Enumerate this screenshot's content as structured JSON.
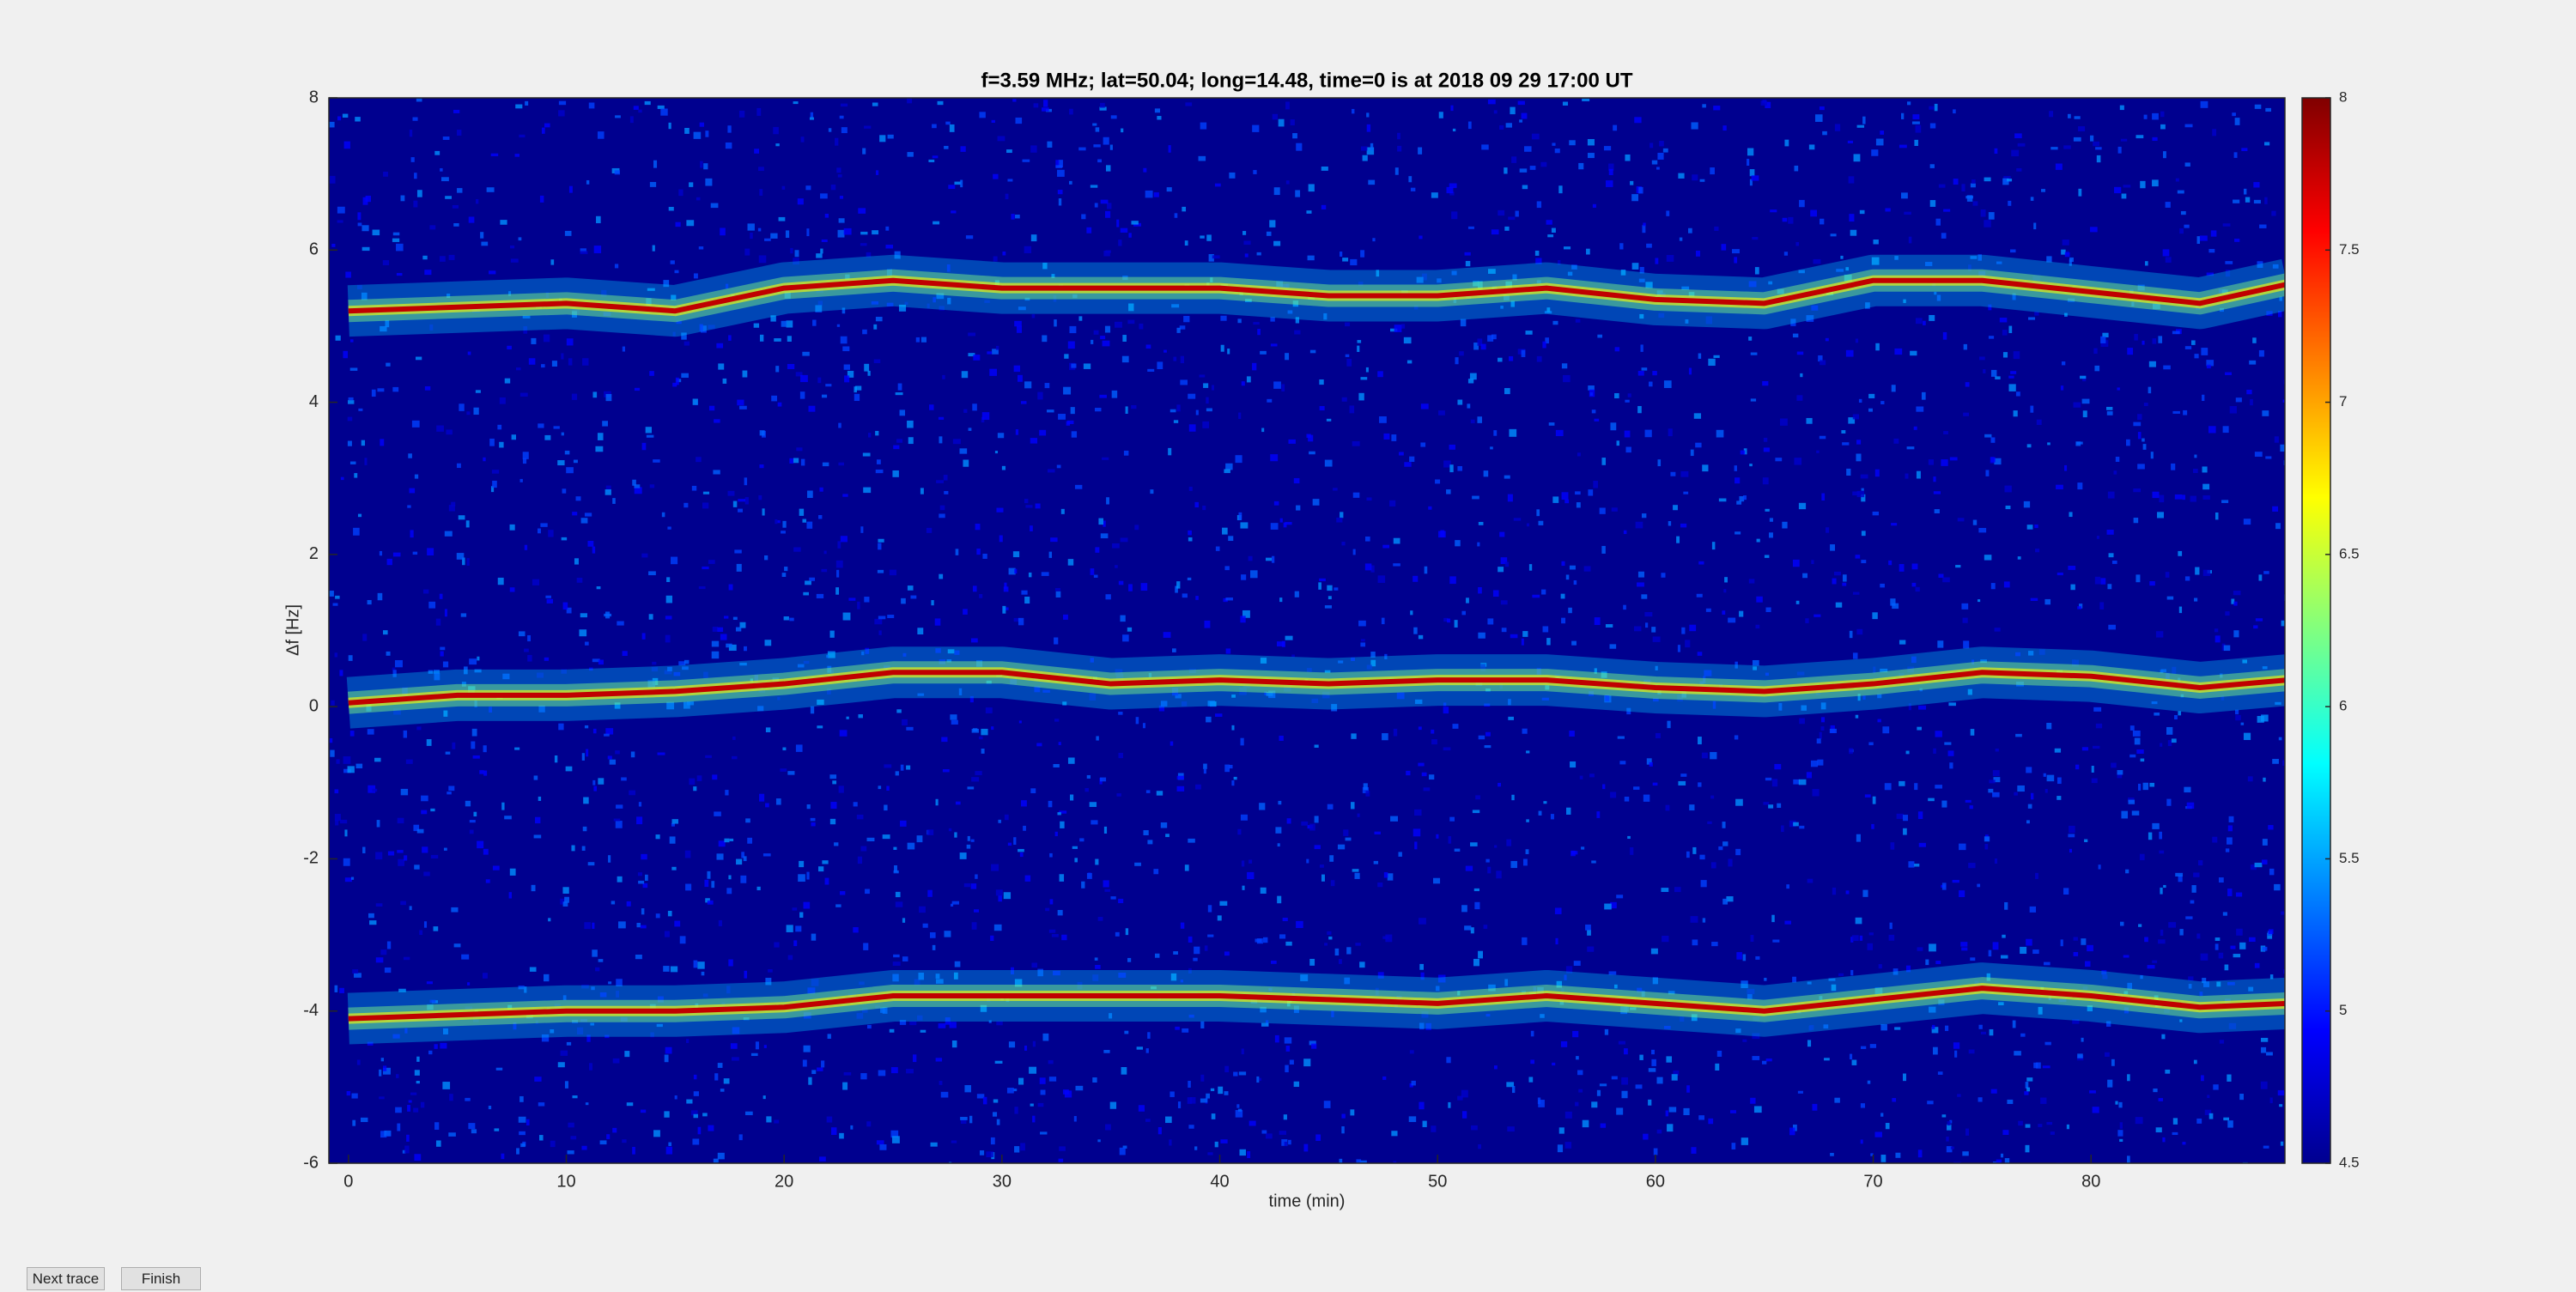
{
  "chart_data": {
    "type": "line",
    "title": "f=3.59 MHz;  lat=50.04; long=14.48, time=0 is at 2018 09 29 17:00 UT",
    "xlabel": "time (min)",
    "ylabel": "Δf [Hz]",
    "x": [
      0,
      5,
      10,
      15,
      20,
      25,
      30,
      35,
      40,
      45,
      50,
      55,
      60,
      65,
      70,
      75,
      80,
      85,
      89
    ],
    "series": [
      {
        "color": "#c00000",
        "values": [
          5.2,
          5.25,
          5.3,
          5.2,
          5.5,
          5.6,
          5.5,
          5.5,
          5.5,
          5.4,
          5.4,
          5.5,
          5.35,
          5.3,
          5.6,
          5.6,
          5.45,
          5.3,
          5.55
        ]
      },
      {
        "color": "#c00000",
        "values": [
          0.05,
          0.15,
          0.15,
          0.2,
          0.3,
          0.45,
          0.45,
          0.3,
          0.35,
          0.3,
          0.35,
          0.35,
          0.25,
          0.2,
          0.3,
          0.45,
          0.4,
          0.25,
          0.35
        ]
      },
      {
        "color": "#c00000",
        "values": [
          -4.1,
          -4.05,
          -4.0,
          -4.0,
          -3.95,
          -3.8,
          -3.8,
          -3.8,
          -3.8,
          -3.85,
          -3.9,
          -3.8,
          -3.9,
          -4.0,
          -3.85,
          -3.7,
          -3.8,
          -3.95,
          -3.9
        ]
      }
    ],
    "xlim": [
      -0.9,
      88.9
    ],
    "xticks": [
      0,
      10,
      20,
      30,
      40,
      50,
      60,
      70,
      80
    ],
    "ylim": [
      -6,
      8
    ],
    "yticks": [
      -6,
      -4,
      -2,
      0,
      2,
      4,
      6,
      8
    ],
    "colormap": "jet",
    "clim": [
      4.5,
      8
    ],
    "cticks": [
      4.5,
      5,
      5.5,
      6,
      6.5,
      7,
      7.5,
      8
    ]
  },
  "ui": {
    "buttons": [
      "Next trace",
      "Finish"
    ]
  }
}
